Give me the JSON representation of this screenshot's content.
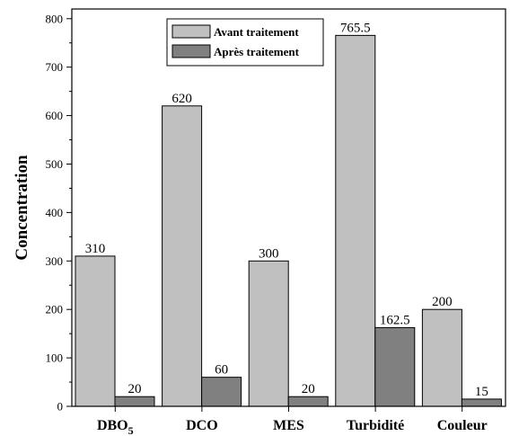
{
  "chart_data": {
    "type": "bar",
    "title": "",
    "xlabel": "",
    "ylabel": "Concentration",
    "ylim": [
      0,
      820
    ],
    "yticks": [
      0,
      100,
      200,
      300,
      400,
      500,
      600,
      700,
      800
    ],
    "grid": false,
    "legend_position": "top-center",
    "categories": [
      "DBO5",
      "DCO",
      "MES",
      "Turbidité",
      "Couleur"
    ],
    "category_labels": [
      {
        "main": "DBO",
        "sub": "5"
      },
      {
        "main": "DCO",
        "sub": ""
      },
      {
        "main": "MES",
        "sub": ""
      },
      {
        "main": "Turbidité",
        "sub": ""
      },
      {
        "main": "Couleur",
        "sub": ""
      }
    ],
    "series": [
      {
        "name": "Avant traitement",
        "color": "#c0c0c0",
        "values": [
          310,
          620,
          300,
          765.5,
          200
        ],
        "labels": [
          "310",
          "620",
          "300",
          "765.5",
          "200"
        ]
      },
      {
        "name": "Après traitement",
        "color": "#808080",
        "values": [
          20,
          60,
          20,
          162.5,
          15
        ],
        "labels": [
          "20",
          "60",
          "20",
          "162.5",
          "15"
        ]
      }
    ]
  }
}
